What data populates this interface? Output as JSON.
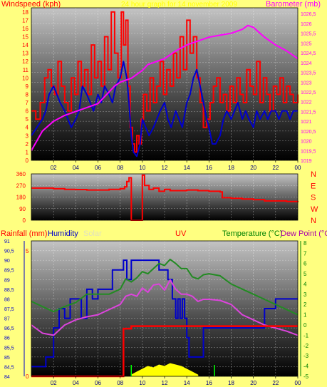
{
  "colors": {
    "background": "#ffff80",
    "wind": "#ff0000",
    "gust": "#ff0000",
    "barometer": "#ff00ff",
    "direction": "#ff0000",
    "rainfall": "#ff0000",
    "humidity": "#0000cc",
    "solar": "#ffff00",
    "uv": "#ff0000",
    "temperature": "#228b22",
    "dewpoint": "#dd44dd"
  },
  "chart_data": [
    {
      "type": "line",
      "title": "24 hour graph for 14 november 2009",
      "ylabel": "Windspeed (kph)",
      "y2label": "Barometer (mb)",
      "x_ticks": [
        "02",
        "04",
        "06",
        "08",
        "10",
        "12",
        "14",
        "16",
        "18",
        "20",
        "22",
        "00"
      ],
      "x_range": [
        0,
        24
      ],
      "y_ticks": [
        "0",
        "1",
        "2",
        "3",
        "4",
        "5",
        "6",
        "7",
        "8",
        "9",
        "10",
        "11",
        "12",
        "13",
        "14",
        "15",
        "16",
        "17",
        "18"
      ],
      "ylim": [
        0,
        18.5
      ],
      "y2_ticks": [
        "1019",
        "1019,5",
        "1020",
        "1020,5",
        "1021",
        "1021,5",
        "1022",
        "1022,5",
        "1023",
        "1023,5",
        "1024",
        "1024,5",
        "1025",
        "1025,5",
        "1026",
        "1026,5"
      ],
      "y2lim": [
        1019,
        1026.8
      ],
      "series": [
        {
          "name": "wind_avg",
          "color": "#0000cc",
          "x": [
            0,
            0.5,
            1,
            1.3,
            1.6,
            2,
            2.3,
            2.6,
            3,
            3.3,
            3.6,
            4,
            4.3,
            4.6,
            5,
            5.3,
            5.6,
            6,
            6.3,
            6.6,
            7,
            7.3,
            7.6,
            8,
            8.3,
            8.6,
            8.8,
            9,
            9.2,
            9.5,
            9.8,
            10,
            10.3,
            10.6,
            11,
            11.3,
            11.6,
            12,
            12.3,
            12.6,
            13,
            13.3,
            13.6,
            14,
            14.3,
            14.6,
            14.9,
            15.2,
            15.5,
            15.8,
            16,
            16.3,
            16.6,
            17,
            17.3,
            17.6,
            18,
            18.3,
            18.6,
            19,
            19.3,
            19.6,
            20,
            20.3,
            20.6,
            21,
            21.3,
            21.6,
            22,
            22.3,
            22.6,
            23,
            23.3,
            23.6,
            24
          ],
          "y": [
            3,
            4,
            5,
            6,
            8,
            9,
            8,
            7,
            6,
            5,
            4,
            5,
            6,
            9,
            8,
            7,
            6,
            8,
            7,
            9,
            8,
            7,
            9,
            10,
            12,
            10,
            7,
            3,
            1,
            0.5,
            2,
            5,
            4,
            3,
            4,
            5,
            6,
            7,
            5,
            4,
            6,
            5,
            4,
            7,
            8,
            10,
            11,
            9,
            7,
            5,
            4,
            2,
            2,
            3,
            5,
            6,
            5,
            6,
            7,
            5,
            6,
            5,
            4,
            6,
            5,
            6,
            5,
            6,
            6,
            5,
            6,
            6,
            5,
            6,
            6
          ]
        },
        {
          "name": "wind_gust",
          "color": "#ff0000",
          "x": [
            0,
            0.4,
            0.8,
            1.2,
            1.5,
            1.8,
            2.1,
            2.4,
            2.7,
            3,
            3.3,
            3.6,
            3.9,
            4.2,
            4.5,
            4.8,
            5.1,
            5.4,
            5.7,
            6,
            6.3,
            6.6,
            6.9,
            7.2,
            7.5,
            7.8,
            8.1,
            8.3,
            8.5,
            8.7,
            8.9,
            9.1,
            9.3,
            9.5,
            9.7,
            9.9,
            10.1,
            10.4,
            10.7,
            11,
            11.3,
            11.6,
            11.9,
            12.2,
            12.5,
            12.8,
            13.1,
            13.4,
            13.7,
            14,
            14.3,
            14.6,
            14.9,
            15.2,
            15.5,
            15.8,
            16.1,
            16.4,
            16.7,
            17,
            17.3,
            17.6,
            17.9,
            18.2,
            18.5,
            18.8,
            19.1,
            19.4,
            19.7,
            20,
            20.3,
            20.6,
            20.9,
            21.2,
            21.5,
            21.8,
            22.1,
            22.4,
            22.7,
            23,
            23.3,
            23.6,
            24
          ],
          "y": [
            6,
            5,
            7,
            10,
            11,
            9,
            8,
            12,
            9,
            7,
            6,
            10,
            8,
            12,
            9,
            11,
            8,
            14,
            10,
            12,
            9,
            15,
            11,
            18,
            13,
            10,
            18,
            14,
            17,
            9,
            4,
            2,
            1,
            3,
            2,
            5,
            8,
            6,
            10,
            7,
            9,
            12,
            8,
            11,
            9,
            13,
            10,
            15,
            11,
            17,
            13,
            15,
            10,
            7,
            4,
            5,
            7,
            9,
            10,
            7,
            8,
            6,
            9,
            7,
            10,
            8,
            7,
            11,
            9,
            8,
            12,
            7,
            10,
            8,
            6,
            9,
            8,
            10,
            7,
            9,
            8,
            7,
            8
          ]
        },
        {
          "name": "barometer",
          "color": "#ff00ff",
          "axis": "y2",
          "x": [
            0,
            1,
            2,
            3,
            4,
            5,
            6,
            6.5,
            7,
            7.5,
            8,
            8.5,
            9,
            9.5,
            10,
            10.5,
            11,
            12,
            13,
            14,
            15,
            16,
            17,
            18,
            19,
            19.5,
            20,
            21,
            22,
            23,
            24
          ],
          "y": [
            1019.5,
            1020.5,
            1021.0,
            1021.3,
            1021.5,
            1021.7,
            1021.9,
            1022.2,
            1022.5,
            1022.8,
            1023.0,
            1023.1,
            1023.2,
            1023.4,
            1023.6,
            1023.9,
            1024.0,
            1024.2,
            1024.6,
            1024.9,
            1025.1,
            1025.3,
            1025.4,
            1025.5,
            1025.7,
            1025.9,
            1025.8,
            1025.3,
            1024.9,
            1024.6,
            1024.2
          ]
        }
      ]
    },
    {
      "type": "line",
      "ylabel": "",
      "x_range": [
        0,
        24
      ],
      "y_ticks": [
        "0",
        "90",
        "180",
        "270",
        "360"
      ],
      "ylim": [
        0,
        360
      ],
      "right_labels": [
        "N",
        "W",
        "S",
        "E",
        "N"
      ],
      "series": [
        {
          "name": "wind_direction",
          "color": "#ff0000",
          "x": [
            0,
            1,
            2,
            3,
            4,
            5,
            6,
            7,
            8,
            8.4,
            8.6,
            8.8,
            9,
            9.5,
            9.9,
            10,
            10.2,
            10.6,
            11,
            11.5,
            12,
            12.5,
            13,
            14,
            15,
            16,
            17,
            17.2,
            18,
            19,
            20,
            21,
            22,
            23,
            24
          ],
          "y": [
            250,
            250,
            245,
            240,
            238,
            235,
            235,
            240,
            245,
            260,
            300,
            330,
            0,
            0,
            0,
            350,
            270,
            240,
            250,
            225,
            240,
            230,
            230,
            235,
            230,
            225,
            220,
            175,
            170,
            165,
            160,
            150,
            150,
            145,
            140
          ]
        }
      ]
    },
    {
      "type": "line",
      "labels": {
        "rainfall": "Rainfall (mm)",
        "humidity": "Humidity",
        "solar": "Solar",
        "uv": "UV",
        "temperature": "Temperature (°C)",
        "dewpoint": "Dew Point (°C)"
      },
      "x_ticks": [
        "02",
        "04",
        "06",
        "08",
        "10",
        "12",
        "14",
        "16",
        "18",
        "20",
        "22",
        "00"
      ],
      "x_range": [
        0,
        24
      ],
      "humidity_ticks": [
        "84",
        "84,5",
        "85",
        "85,5",
        "86",
        "86,5",
        "87",
        "87,5",
        "88",
        "88,5",
        "89",
        "89,5",
        "90",
        "90,5",
        "91"
      ],
      "humidity_lim": [
        84,
        91
      ],
      "rain_ticks": [
        "0",
        "5"
      ],
      "rain_lim": [
        0,
        5.4
      ],
      "temp_ticks": [
        "-5",
        "-4",
        "-3",
        "-2",
        "-1",
        "0",
        "1",
        "2",
        "3",
        "4",
        "5",
        "6",
        "7",
        "8"
      ],
      "temp_lim": [
        -5,
        8.2
      ],
      "series": [
        {
          "name": "humidity",
          "color": "#0000cc",
          "x": [
            0,
            1,
            1.3,
            2,
            2.5,
            3,
            3.5,
            4,
            4.5,
            5,
            5.5,
            6,
            6.5,
            7,
            7.3,
            8,
            8.3,
            8.6,
            9,
            9.6,
            10,
            10.5,
            11,
            11.5,
            12,
            12.3,
            12.7,
            13,
            13.2,
            13.4,
            13.6,
            13.8,
            14,
            14.2,
            14.5,
            15,
            15.5,
            16,
            16.5,
            17,
            17.5,
            18,
            19,
            20,
            20.5,
            21,
            21.5,
            22,
            23,
            24
          ],
          "y": [
            84.5,
            84.5,
            85,
            86.5,
            87.5,
            87,
            88,
            88,
            87,
            88.5,
            88,
            88.5,
            88.5,
            88.5,
            89.5,
            89.5,
            90,
            89,
            90,
            90,
            90,
            90,
            90,
            89.5,
            89.5,
            89,
            88,
            87,
            88,
            87,
            88,
            87,
            86,
            85,
            85,
            85,
            86.5,
            86.5,
            86.5,
            86.5,
            86.5,
            86.5,
            86.5,
            86.5,
            86.5,
            87.5,
            87.5,
            88,
            88,
            88
          ]
        },
        {
          "name": "temperature",
          "color": "#228b22",
          "x": [
            0,
            1,
            2,
            3,
            4,
            5,
            6,
            7,
            8,
            8.5,
            9,
            9.5,
            10,
            10.5,
            11,
            11.5,
            12,
            12.5,
            13,
            13.5,
            14,
            14.5,
            15,
            15.5,
            16,
            17,
            18,
            19,
            20,
            21,
            22,
            23,
            24
          ],
          "y": [
            2.3,
            1.8,
            1.3,
            1.8,
            2.2,
            3.0,
            3.0,
            3.0,
            3.5,
            4.5,
            4.2,
            4.6,
            5.2,
            5.0,
            5.5,
            6.0,
            5.8,
            6.4,
            6.0,
            5.5,
            5.5,
            4.7,
            4.5,
            4.9,
            5.0,
            4.8,
            4.0,
            3.5,
            3.0,
            2.5,
            2.0,
            1.5,
            1.0
          ]
        },
        {
          "name": "dewpoint",
          "color": "#dd44dd",
          "x": [
            0,
            1,
            2,
            3,
            4,
            5,
            6,
            7,
            8,
            8.5,
            9,
            9.5,
            10,
            10.5,
            11,
            11.5,
            12,
            12.5,
            13,
            13.5,
            14,
            14.5,
            15,
            15.5,
            16,
            17,
            18,
            19,
            20,
            21,
            22,
            23,
            24
          ],
          "y": [
            0,
            -0.8,
            -1.0,
            0,
            0.5,
            0.8,
            1.0,
            1.5,
            2.0,
            2.8,
            3.0,
            2.8,
            3.6,
            3.2,
            3.9,
            4.0,
            3.4,
            4.4,
            3.5,
            3.0,
            3.0,
            2.8,
            2.3,
            2.5,
            2.5,
            2.4,
            2.0,
            1.0,
            0.5,
            0,
            -0.3,
            -0.6,
            -1.0
          ]
        },
        {
          "name": "rainfall",
          "color": "#ff0000",
          "axis": "rain",
          "x": [
            0,
            8,
            8.3,
            9,
            24
          ],
          "y": [
            0,
            0,
            1.9,
            2.0,
            2.0
          ]
        },
        {
          "name": "solar",
          "color": "#ffff00",
          "x": [
            9,
            9.5,
            10,
            10.5,
            11,
            11.5,
            12,
            12.5,
            13,
            13.5,
            14,
            14.5,
            15
          ],
          "y": [
            0.05,
            0.15,
            0.25,
            0.35,
            0.3,
            0.4,
            0.35,
            0.45,
            0.4,
            0.35,
            0.25,
            0.15,
            0.05
          ]
        },
        {
          "name": "uv",
          "color": "#00ff00",
          "x": [
            9,
            16.5
          ],
          "y": [
            0.1,
            0.1
          ]
        }
      ]
    }
  ]
}
